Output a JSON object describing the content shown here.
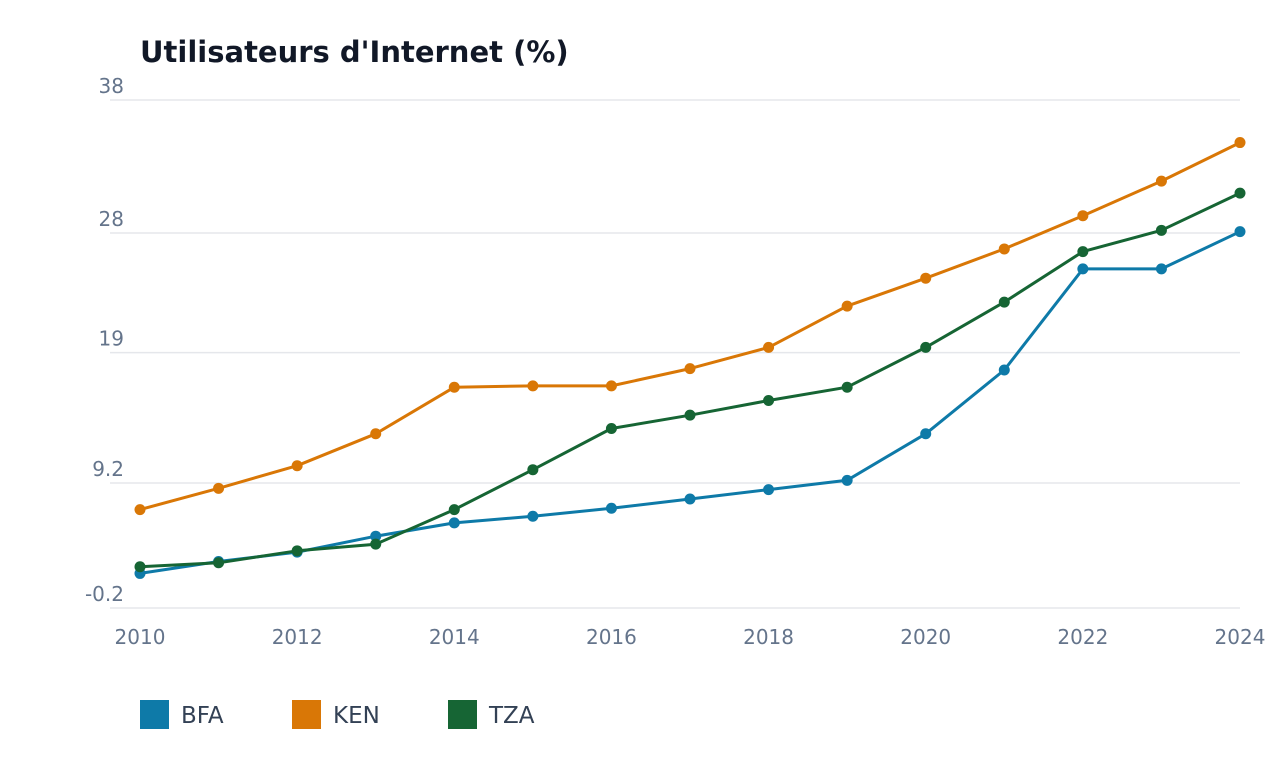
{
  "chart_data": {
    "type": "line",
    "title": "Utilisateurs d'Internet (%)",
    "xlabel": "",
    "ylabel": "",
    "x": [
      2010,
      2011,
      2012,
      2013,
      2014,
      2015,
      2016,
      2017,
      2018,
      2019,
      2020,
      2021,
      2022,
      2023,
      2024
    ],
    "x_ticks": [
      "2010",
      "2012",
      "2014",
      "2016",
      "2018",
      "2020",
      "2022",
      "2024"
    ],
    "y_ticks": [
      "38",
      "28",
      "19",
      "9.2",
      "-0.2"
    ],
    "ylim": [
      -0.2,
      38
    ],
    "grid": true,
    "legend_position": "bottom-left",
    "series": [
      {
        "name": "BFA",
        "color": "#0e7aa8",
        "values": [
          2.4,
          3.3,
          4.0,
          5.2,
          6.2,
          6.7,
          7.3,
          8.0,
          8.7,
          9.4,
          12.9,
          17.7,
          25.3,
          25.3,
          28.1
        ]
      },
      {
        "name": "KEN",
        "color": "#d97706",
        "values": [
          7.2,
          8.8,
          10.5,
          12.9,
          16.4,
          16.5,
          16.5,
          17.8,
          19.4,
          22.5,
          24.6,
          26.8,
          29.3,
          31.9,
          34.8
        ]
      },
      {
        "name": "TZA",
        "color": "#166534",
        "values": [
          2.9,
          3.2,
          4.1,
          4.6,
          7.2,
          10.2,
          13.3,
          14.3,
          15.4,
          16.4,
          19.4,
          22.8,
          26.6,
          28.2,
          31.0
        ]
      }
    ]
  }
}
